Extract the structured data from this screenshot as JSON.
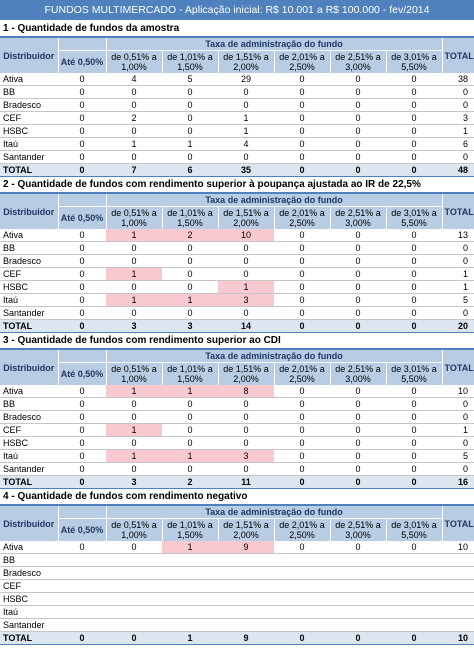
{
  "title": "FUNDOS MULTIMERCADO - Aplicação inicial: R$ 10.001 a R$ 100.000 - fev/2014",
  "headers": {
    "distribuidor": "Distribuidor",
    "group": "Taxa de administração do fundo",
    "ate": "Até 0,50%",
    "r1": "de 0,51% a 1,00%",
    "r2": "de 1,01% a 1,50%",
    "r3": "de 1,51% a 2,00%",
    "r4": "de 2,01% a 2,50%",
    "r5": "de 2,51% a 3,00%",
    "r6": "de 3,01% a 5,50%",
    "total": "TOTAL"
  },
  "sections": [
    {
      "title": "1 - Quantidade de fundos da amostra",
      "rows": [
        {
          "name": "Ativa",
          "v": [
            "0",
            "4",
            "5",
            "29",
            "0",
            "0",
            "0"
          ],
          "t": "38"
        },
        {
          "name": "BB",
          "v": [
            "0",
            "0",
            "0",
            "0",
            "0",
            "0",
            "0"
          ],
          "t": "0"
        },
        {
          "name": "Bradesco",
          "v": [
            "0",
            "0",
            "0",
            "0",
            "0",
            "0",
            "0"
          ],
          "t": "0"
        },
        {
          "name": "CEF",
          "v": [
            "0",
            "2",
            "0",
            "1",
            "0",
            "0",
            "0"
          ],
          "t": "3"
        },
        {
          "name": "HSBC",
          "v": [
            "0",
            "0",
            "0",
            "1",
            "0",
            "0",
            "0"
          ],
          "t": "1"
        },
        {
          "name": "Itaú",
          "v": [
            "0",
            "1",
            "1",
            "4",
            "0",
            "0",
            "0"
          ],
          "t": "6"
        },
        {
          "name": "Santander",
          "v": [
            "0",
            "0",
            "0",
            "0",
            "0",
            "0",
            "0"
          ],
          "t": "0"
        }
      ],
      "total": {
        "name": "TOTAL",
        "v": [
          "0",
          "7",
          "6",
          "35",
          "0",
          "0",
          "0"
        ],
        "t": "48"
      }
    },
    {
      "title": "2 - Quantidade de fundos com rendimento superior à poupança ajustada ao IR de 22,5%",
      "rows": [
        {
          "name": "Ativa",
          "v": [
            "0",
            "1",
            "2",
            "10",
            "0",
            "0",
            "0"
          ],
          "t": "13",
          "hl": [
            1,
            2,
            3
          ]
        },
        {
          "name": "BB",
          "v": [
            "0",
            "0",
            "0",
            "0",
            "0",
            "0",
            "0"
          ],
          "t": "0"
        },
        {
          "name": "Bradesco",
          "v": [
            "0",
            "0",
            "0",
            "0",
            "0",
            "0",
            "0"
          ],
          "t": "0"
        },
        {
          "name": "CEF",
          "v": [
            "0",
            "1",
            "0",
            "0",
            "0",
            "0",
            "0"
          ],
          "t": "1",
          "hl": [
            1
          ]
        },
        {
          "name": "HSBC",
          "v": [
            "0",
            "0",
            "0",
            "1",
            "0",
            "0",
            "0"
          ],
          "t": "1",
          "hl": [
            3
          ]
        },
        {
          "name": "Itaú",
          "v": [
            "0",
            "1",
            "1",
            "3",
            "0",
            "0",
            "0"
          ],
          "t": "5",
          "hl": [
            1,
            2,
            3
          ]
        },
        {
          "name": "Santander",
          "v": [
            "0",
            "0",
            "0",
            "0",
            "0",
            "0",
            "0"
          ],
          "t": "0"
        }
      ],
      "total": {
        "name": "TOTAL",
        "v": [
          "0",
          "3",
          "3",
          "14",
          "0",
          "0",
          "0"
        ],
        "t": "20"
      }
    },
    {
      "title": "3 - Quantidade de fundos com rendimento superior ao CDI",
      "rows": [
        {
          "name": "Ativa",
          "v": [
            "0",
            "1",
            "1",
            "8",
            "0",
            "0",
            "0"
          ],
          "t": "10",
          "hl": [
            1,
            2,
            3
          ]
        },
        {
          "name": "BB",
          "v": [
            "0",
            "0",
            "0",
            "0",
            "0",
            "0",
            "0"
          ],
          "t": "0"
        },
        {
          "name": "Bradesco",
          "v": [
            "0",
            "0",
            "0",
            "0",
            "0",
            "0",
            "0"
          ],
          "t": "0"
        },
        {
          "name": "CEF",
          "v": [
            "0",
            "1",
            "0",
            "0",
            "0",
            "0",
            "0"
          ],
          "t": "1",
          "hl": [
            1
          ]
        },
        {
          "name": "HSBC",
          "v": [
            "0",
            "0",
            "0",
            "0",
            "0",
            "0",
            "0"
          ],
          "t": "0"
        },
        {
          "name": "Itaú",
          "v": [
            "0",
            "1",
            "1",
            "3",
            "0",
            "0",
            "0"
          ],
          "t": "5",
          "hl": [
            1,
            2,
            3
          ]
        },
        {
          "name": "Santander",
          "v": [
            "0",
            "0",
            "0",
            "0",
            "0",
            "0",
            "0"
          ],
          "t": "0"
        }
      ],
      "total": {
        "name": "TOTAL",
        "v": [
          "0",
          "3",
          "2",
          "11",
          "0",
          "0",
          "0"
        ],
        "t": "16"
      }
    },
    {
      "title": "4 - Quantidade de fundos com rendimento negativo",
      "rows": [
        {
          "name": "Ativa",
          "v": [
            "0",
            "0",
            "1",
            "9",
            "0",
            "0",
            "0"
          ],
          "t": "10",
          "hl": [
            2,
            3
          ]
        },
        {
          "name": "BB",
          "v": [
            "",
            "",
            "",
            "",
            "",
            "",
            ""
          ],
          "t": ""
        },
        {
          "name": "Bradesco",
          "v": [
            "",
            "",
            "",
            "",
            "",
            "",
            ""
          ],
          "t": ""
        },
        {
          "name": "CEF",
          "v": [
            "",
            "",
            "",
            "",
            "",
            "",
            ""
          ],
          "t": ""
        },
        {
          "name": "HSBC",
          "v": [
            "",
            "",
            "",
            "",
            "",
            "",
            ""
          ],
          "t": ""
        },
        {
          "name": "Itaú",
          "v": [
            "",
            "",
            "",
            "",
            "",
            "",
            ""
          ],
          "t": ""
        },
        {
          "name": "Santander",
          "v": [
            "",
            "",
            "",
            "",
            "",
            "",
            ""
          ],
          "t": ""
        }
      ],
      "total": {
        "name": "TOTAL",
        "v": [
          "0",
          "0",
          "1",
          "9",
          "0",
          "0",
          "0"
        ],
        "t": "10"
      }
    }
  ]
}
